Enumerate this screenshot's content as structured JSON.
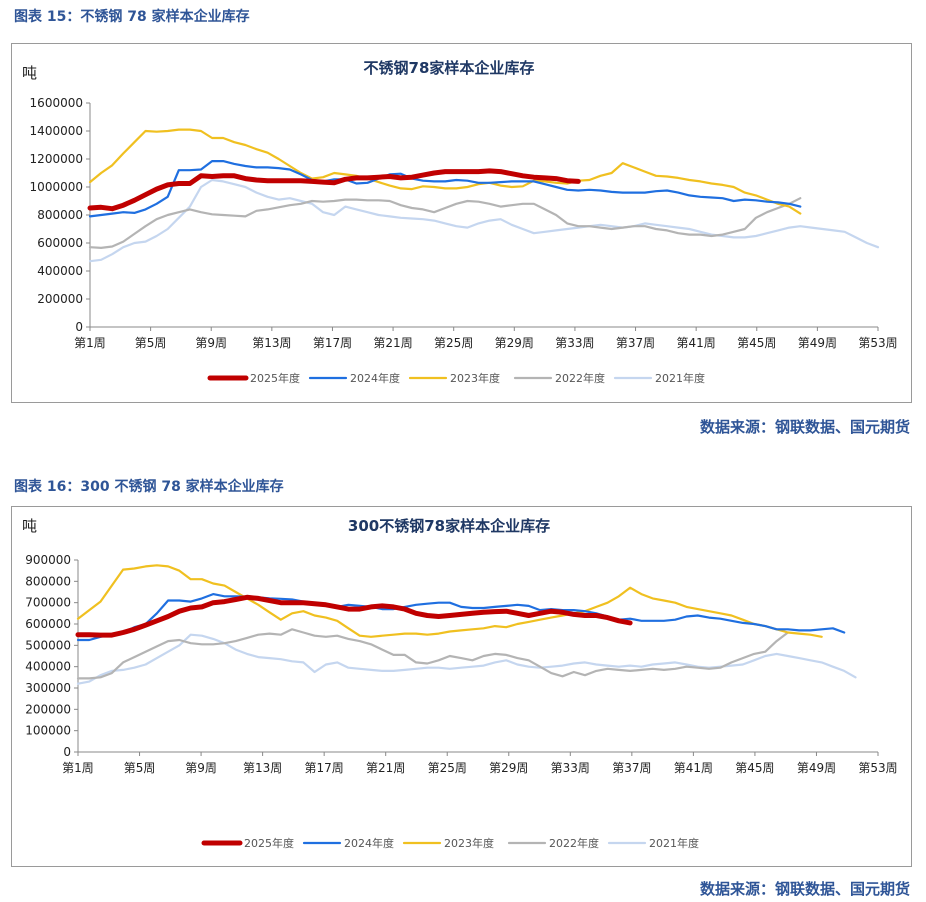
{
  "figures": [
    {
      "label": "图表 15：不锈钢 78 家样本企业库存",
      "source": "数据来源：钢联数据、国元期货"
    },
    {
      "label": "图表 16：300 不锈钢 78 家样本企业库存",
      "source": "数据来源：钢联数据、国元期货"
    }
  ],
  "chart_data": [
    {
      "type": "line",
      "title": "不锈钢78家样本企业库存",
      "ylabel": "吨",
      "ylim": [
        0,
        1600000
      ],
      "yticks": [
        0,
        200000,
        400000,
        600000,
        800000,
        1000000,
        1200000,
        1400000,
        1600000
      ],
      "xlim": [
        1,
        53
      ],
      "xtick_labels": [
        "第1周",
        "第5周",
        "第9周",
        "第13周",
        "第17周",
        "第21周",
        "第25周",
        "第29周",
        "第33周",
        "第37周",
        "第41周",
        "第45周",
        "第49周",
        "第53周"
      ],
      "grid": false,
      "legend": "bottom",
      "series": [
        {
          "name": "2025年度",
          "color": "#c00000",
          "values": [
            850000,
            855000,
            845000,
            870000,
            905000,
            945000,
            985000,
            1015000,
            1025000,
            1025000,
            1080000,
            1075000,
            1080000,
            1080000,
            1060000,
            1050000,
            1045000,
            1045000,
            1045000,
            1045000,
            1040000,
            1035000,
            1030000,
            1055000,
            1065000,
            1065000,
            1070000,
            1075000,
            1065000,
            1070000,
            1085000,
            1100000,
            1110000,
            1110000,
            1110000,
            1110000,
            1115000,
            1110000,
            1095000,
            1080000,
            1070000,
            1065000,
            1060000,
            1045000,
            1040000
          ]
        },
        {
          "name": "2024年度",
          "color": "#1f6fe0",
          "values": [
            790000,
            800000,
            810000,
            820000,
            815000,
            840000,
            880000,
            930000,
            1120000,
            1120000,
            1125000,
            1185000,
            1185000,
            1165000,
            1150000,
            1140000,
            1140000,
            1135000,
            1125000,
            1090000,
            1050000,
            1040000,
            1055000,
            1055000,
            1025000,
            1030000,
            1060000,
            1090000,
            1095000,
            1060000,
            1045000,
            1040000,
            1040000,
            1050000,
            1045000,
            1030000,
            1030000,
            1035000,
            1040000,
            1040000,
            1040000,
            1020000,
            1000000,
            980000,
            975000,
            980000,
            975000,
            965000,
            960000,
            960000,
            960000,
            970000,
            975000,
            960000,
            940000,
            930000,
            925000,
            920000,
            900000,
            910000,
            905000,
            895000,
            890000,
            880000,
            860000
          ]
        },
        {
          "name": "2023年度",
          "color": "#f0c020",
          "values": [
            1035000,
            1100000,
            1155000,
            1240000,
            1320000,
            1400000,
            1395000,
            1400000,
            1410000,
            1410000,
            1400000,
            1350000,
            1350000,
            1320000,
            1300000,
            1270000,
            1245000,
            1200000,
            1150000,
            1100000,
            1060000,
            1070000,
            1100000,
            1090000,
            1080000,
            1060000,
            1035000,
            1010000,
            990000,
            985000,
            1005000,
            1000000,
            990000,
            990000,
            1000000,
            1020000,
            1030000,
            1010000,
            1000000,
            1005000,
            1045000,
            1040000,
            1030000,
            1025000,
            1045000,
            1050000,
            1080000,
            1100000,
            1170000,
            1140000,
            1110000,
            1080000,
            1075000,
            1065000,
            1050000,
            1040000,
            1025000,
            1015000,
            1000000,
            960000,
            940000,
            910000,
            880000,
            860000,
            810000
          ]
        },
        {
          "name": "2022年度",
          "color": "#b4b4b4",
          "values": [
            570000,
            565000,
            575000,
            610000,
            665000,
            720000,
            770000,
            800000,
            820000,
            840000,
            820000,
            805000,
            800000,
            795000,
            790000,
            830000,
            840000,
            855000,
            870000,
            880000,
            900000,
            895000,
            900000,
            910000,
            910000,
            905000,
            905000,
            900000,
            870000,
            850000,
            840000,
            820000,
            850000,
            880000,
            900000,
            895000,
            880000,
            860000,
            870000,
            880000,
            880000,
            840000,
            800000,
            740000,
            720000,
            720000,
            710000,
            700000,
            710000,
            720000,
            720000,
            700000,
            690000,
            670000,
            660000,
            660000,
            650000,
            660000,
            680000,
            700000,
            780000,
            820000,
            850000,
            880000,
            920000
          ]
        },
        {
          "name": "2021年度",
          "color": "#c5d6ef",
          "values": [
            470000,
            480000,
            520000,
            570000,
            600000,
            610000,
            650000,
            700000,
            780000,
            860000,
            1000000,
            1050000,
            1040000,
            1020000,
            1000000,
            960000,
            930000,
            910000,
            920000,
            900000,
            880000,
            820000,
            800000,
            860000,
            840000,
            820000,
            800000,
            790000,
            780000,
            775000,
            770000,
            760000,
            740000,
            720000,
            710000,
            740000,
            760000,
            770000,
            730000,
            700000,
            670000,
            680000,
            690000,
            700000,
            710000,
            720000,
            730000,
            720000,
            710000,
            720000,
            740000,
            730000,
            720000,
            710000,
            700000,
            680000,
            660000,
            650000,
            640000,
            640000,
            650000,
            670000,
            690000,
            710000,
            720000,
            710000,
            700000,
            690000,
            680000,
            640000,
            600000,
            570000
          ]
        }
      ]
    },
    {
      "type": "line",
      "title": "300不锈钢78家样本企业库存",
      "ylabel": "吨",
      "ylim": [
        0,
        900000
      ],
      "yticks": [
        0,
        100000,
        200000,
        300000,
        400000,
        500000,
        600000,
        700000,
        800000,
        900000
      ],
      "xlim": [
        1,
        53
      ],
      "xtick_labels": [
        "第1周",
        "第5周",
        "第9周",
        "第13周",
        "第17周",
        "第21周",
        "第25周",
        "第29周",
        "第33周",
        "第37周",
        "第41周",
        "第45周",
        "第49周",
        "第53周"
      ],
      "grid": false,
      "legend": "bottom",
      "series": [
        {
          "name": "2025年度",
          "color": "#c00000",
          "values": [
            550000,
            550000,
            548000,
            548000,
            560000,
            575000,
            595000,
            615000,
            635000,
            660000,
            675000,
            680000,
            700000,
            705000,
            715000,
            725000,
            720000,
            710000,
            700000,
            700000,
            700000,
            695000,
            690000,
            680000,
            670000,
            670000,
            680000,
            685000,
            680000,
            670000,
            650000,
            640000,
            635000,
            640000,
            645000,
            650000,
            655000,
            658000,
            660000,
            650000,
            640000,
            650000,
            660000,
            655000,
            645000,
            640000,
            640000,
            630000,
            615000,
            605000
          ]
        },
        {
          "name": "2024年度",
          "color": "#1f6fe0",
          "values": [
            525000,
            525000,
            540000,
            550000,
            560000,
            585000,
            600000,
            650000,
            710000,
            710000,
            705000,
            720000,
            740000,
            730000,
            730000,
            728000,
            725000,
            720000,
            718000,
            715000,
            705000,
            700000,
            690000,
            680000,
            690000,
            685000,
            680000,
            670000,
            670000,
            680000,
            690000,
            695000,
            700000,
            700000,
            680000,
            675000,
            675000,
            680000,
            685000,
            690000,
            685000,
            665000,
            670000,
            665000,
            665000,
            660000,
            650000,
            635000,
            620000,
            625000,
            615000,
            615000,
            615000,
            620000,
            635000,
            640000,
            630000,
            625000,
            615000,
            605000,
            600000,
            590000,
            575000,
            575000,
            570000,
            570000,
            575000,
            580000,
            560000
          ]
        },
        {
          "name": "2023年度",
          "color": "#f0c020",
          "values": [
            625000,
            665000,
            705000,
            780000,
            855000,
            860000,
            870000,
            875000,
            870000,
            850000,
            810000,
            810000,
            790000,
            780000,
            750000,
            720000,
            690000,
            655000,
            620000,
            650000,
            660000,
            640000,
            630000,
            615000,
            580000,
            545000,
            540000,
            545000,
            550000,
            555000,
            555000,
            550000,
            555000,
            565000,
            570000,
            575000,
            580000,
            590000,
            585000,
            600000,
            610000,
            620000,
            630000,
            640000,
            650000,
            660000,
            680000,
            700000,
            730000,
            770000,
            740000,
            720000,
            710000,
            700000,
            680000,
            670000,
            660000,
            650000,
            640000,
            620000,
            600000,
            590000,
            575000,
            560000,
            555000,
            550000,
            540000
          ]
        },
        {
          "name": "2022年度",
          "color": "#b4b4b4",
          "values": [
            345000,
            345000,
            350000,
            370000,
            420000,
            445000,
            470000,
            495000,
            520000,
            525000,
            510000,
            505000,
            505000,
            510000,
            520000,
            535000,
            550000,
            555000,
            550000,
            575000,
            560000,
            545000,
            540000,
            545000,
            530000,
            520000,
            505000,
            480000,
            455000,
            455000,
            420000,
            415000,
            430000,
            450000,
            440000,
            430000,
            450000,
            460000,
            455000,
            440000,
            430000,
            400000,
            370000,
            355000,
            375000,
            360000,
            380000,
            390000,
            385000,
            380000,
            385000,
            390000,
            385000,
            390000,
            400000,
            395000,
            390000,
            395000,
            420000,
            440000,
            460000,
            470000,
            520000,
            560000
          ]
        },
        {
          "name": "2021年度",
          "color": "#c5d6ef",
          "values": [
            320000,
            330000,
            360000,
            380000,
            385000,
            395000,
            410000,
            440000,
            470000,
            500000,
            550000,
            545000,
            530000,
            510000,
            480000,
            460000,
            445000,
            440000,
            435000,
            425000,
            420000,
            375000,
            410000,
            420000,
            395000,
            390000,
            385000,
            380000,
            380000,
            385000,
            390000,
            395000,
            395000,
            390000,
            395000,
            400000,
            405000,
            420000,
            430000,
            410000,
            400000,
            395000,
            400000,
            405000,
            415000,
            420000,
            410000,
            405000,
            400000,
            405000,
            400000,
            410000,
            415000,
            420000,
            410000,
            400000,
            395000,
            400000,
            405000,
            410000,
            430000,
            450000,
            460000,
            450000,
            440000,
            430000,
            420000,
            400000,
            380000,
            350000
          ]
        }
      ]
    }
  ]
}
